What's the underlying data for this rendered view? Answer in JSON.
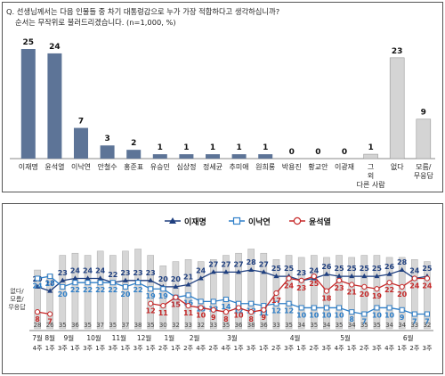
{
  "top_panel": {
    "question_line1": "Q. 선생님께서는 다음 인물들 중 차기 대통령감으로 누가 가장 적합하다고 생각하십니까?",
    "question_line2": "순서는 무작위로 불러드리겠습니다. (n=1,000, %)"
  },
  "chart_data": [
    {
      "type": "bar",
      "title": "",
      "categories": [
        "이재명",
        "윤석열",
        "이낙연",
        "안철수",
        "홍준표",
        "유승민",
        "심상정",
        "정세균",
        "추미애",
        "원희룡",
        "박용진",
        "황교안",
        "이광재",
        "그 외 다른 사람",
        "없다",
        "모름/ 무응답"
      ],
      "values": [
        25,
        24,
        7,
        3,
        2,
        1,
        1,
        1,
        1,
        1,
        0,
        0,
        0,
        1,
        23,
        9
      ],
      "highlight_gray_categories": [
        "그 외 다른 사람",
        "없다",
        "모름/ 무응답"
      ],
      "ylim": [
        0,
        27
      ],
      "colors": {
        "candidate": "#5d7497",
        "other": "#d4d4d4"
      }
    },
    {
      "type": "line",
      "title": "",
      "legend": {
        "position": "top-right"
      },
      "series": [
        {
          "name": "이재명",
          "color": "#1f3f7f",
          "marker": "triangle",
          "values": [
            20,
            18,
            23,
            24,
            24,
            24,
            22,
            23,
            23,
            23,
            20,
            20,
            21,
            24,
            27,
            27,
            27,
            28,
            27,
            25,
            25,
            23,
            24,
            26,
            25,
            25,
            25,
            25,
            26,
            28,
            24,
            25
          ]
        },
        {
          "name": "이낙연",
          "color": "#2f7fc8",
          "marker": "square",
          "values": [
            24,
            25,
            20,
            22,
            22,
            22,
            22,
            20,
            22,
            19,
            19,
            15,
            16,
            13,
            13,
            14,
            12,
            12,
            11,
            12,
            12,
            10,
            10,
            10,
            10,
            8,
            7,
            10,
            10,
            9,
            7,
            7
          ]
        },
        {
          "name": "윤석열",
          "color": "#c62828",
          "marker": "circle",
          "values": [
            8,
            7,
            null,
            null,
            null,
            null,
            null,
            null,
            null,
            12,
            11,
            15,
            11,
            10,
            9,
            8,
            10,
            8,
            9,
            17,
            24,
            23,
            25,
            18,
            23,
            21,
            20,
            19,
            22,
            20,
            24,
            24
          ]
        }
      ],
      "undecided_label": "없다/ 모름/ 무응답",
      "undecided_values": [
        28,
        26,
        35,
        36,
        35,
        37,
        35,
        37,
        38,
        35,
        30,
        32,
        33,
        32,
        33,
        35,
        36,
        38,
        36,
        33,
        35,
        34,
        35,
        34,
        35,
        34,
        35,
        35,
        34,
        34,
        33,
        32
      ],
      "x_ticks": [
        "4주",
        "1주",
        "3주",
        "1주",
        "3주",
        "1주",
        "3주",
        "1주",
        "3주",
        "1주",
        "2주",
        "1주",
        "2주",
        "4주",
        "2주",
        "4주",
        "1주",
        "3주",
        "1주",
        "2주",
        "3주",
        "1주",
        "2주",
        "3주",
        "4주",
        "1주",
        "2주",
        "3주",
        "4주",
        "1주",
        "2주",
        "3주"
      ],
      "x_month_labels": [
        {
          "label": "7월",
          "at": 0
        },
        {
          "label": "8월",
          "at": 1
        },
        {
          "label": "9월",
          "at": 2.5
        },
        {
          "label": "10월",
          "at": 4.5
        },
        {
          "label": "11월",
          "at": 6.5
        },
        {
          "label": "12월",
          "at": 8.5
        },
        {
          "label": "1월",
          "at": 10.5
        },
        {
          "label": "2월",
          "at": 12.5
        },
        {
          "label": "3월",
          "at": 15.5
        },
        {
          "label": "4월",
          "at": 20.5
        },
        {
          "label": "5월",
          "at": 24.5
        },
        {
          "label": "6월",
          "at": 29.5
        }
      ],
      "ylim": [
        0,
        45
      ]
    }
  ]
}
